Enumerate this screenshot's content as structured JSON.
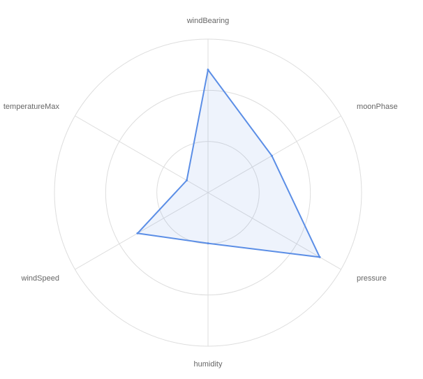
{
  "chart_data": {
    "type": "radar",
    "axes": [
      "windBearing",
      "moonPhase",
      "pressure",
      "humidity",
      "windSpeed",
      "temperatureMax"
    ],
    "series": [
      {
        "values": [
          0.8,
          0.48,
          0.84,
          0.33,
          0.53,
          0.16
        ]
      }
    ],
    "range": [
      0,
      1
    ],
    "grid_rings": 3,
    "grid": true,
    "legend": "none",
    "colors": {
      "line": "#5b8ee6",
      "fill": "#5b8ee6",
      "grid": "#dddddd",
      "label": "#666666"
    }
  }
}
